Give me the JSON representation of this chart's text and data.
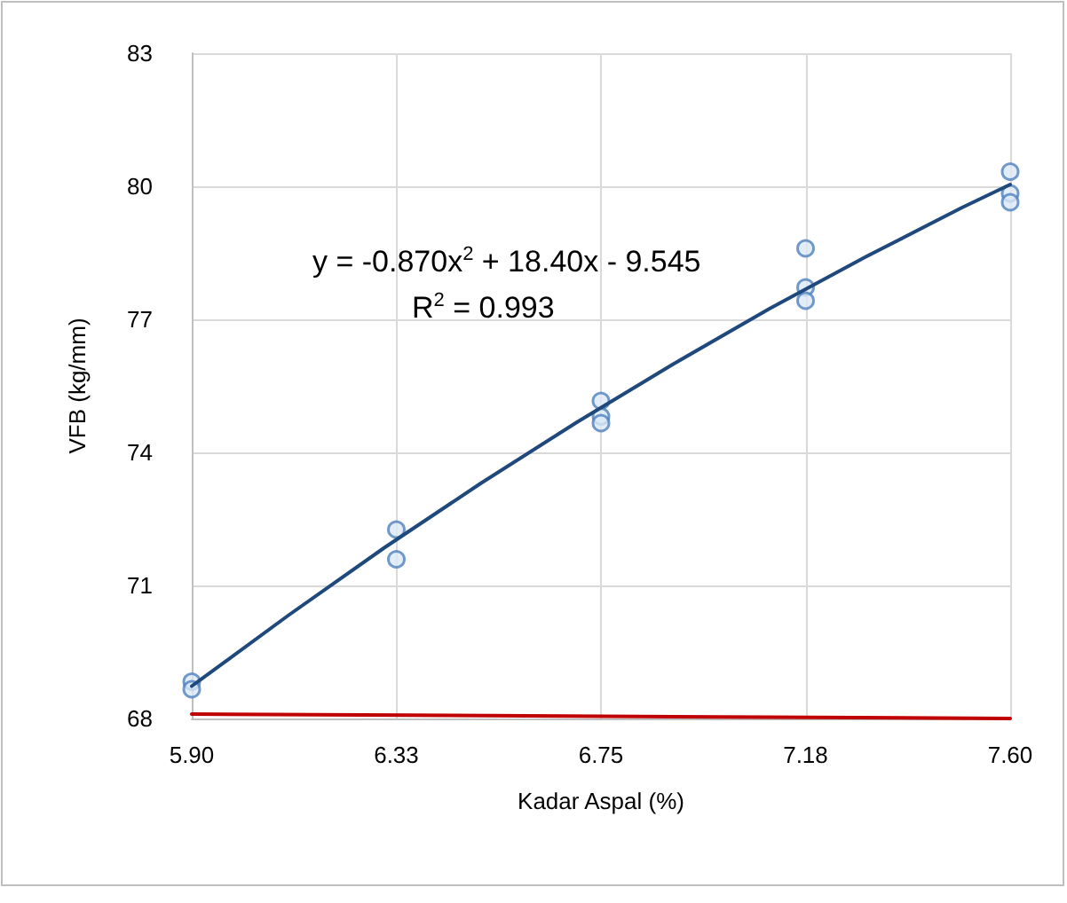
{
  "chart_data": {
    "type": "scatter",
    "xlabel": "Kadar Aspal (%)",
    "ylabel": "VFB (kg/mm)",
    "xlim": [
      5.9,
      7.6
    ],
    "xticks": [
      {
        "value": 5.9,
        "label": "5.90"
      },
      {
        "value": 6.325,
        "label": "6.33"
      },
      {
        "value": 6.75,
        "label": "6.75"
      },
      {
        "value": 7.175,
        "label": "7.18"
      },
      {
        "value": 7.6,
        "label": "7.60"
      }
    ],
    "ylim": [
      68,
      83
    ],
    "yticks": [
      68,
      71,
      74,
      77,
      80,
      83
    ],
    "grid": true,
    "marker": "circle",
    "annotations": [
      "y = -0.870x$^{2}$ + 18.40x - 9.545",
      "R$^{2}$ = 0.993"
    ],
    "series": [
      {
        "color": "#4f81bd",
        "x": [
          5.9,
          5.9,
          6.325,
          6.325,
          6.75,
          6.75,
          6.75,
          7.175,
          7.175,
          7.175,
          7.6,
          7.6,
          7.6
        ],
        "values": [
          68.83,
          68.66,
          72.26,
          71.59,
          75.16,
          74.81,
          74.66,
          78.6,
          77.72,
          77.42,
          80.33,
          79.84,
          79.64
        ]
      },
      {
        "type": "line",
        "color": "#1f497d",
        "marker": "none",
        "x": [
          5.9,
          6.1,
          6.3,
          6.5,
          6.7,
          6.9,
          7.1,
          7.3,
          7.5,
          7.6
        ],
        "values": [
          68.73,
          70.32,
          71.85,
          73.3,
          74.68,
          75.99,
          77.24,
          78.41,
          79.52,
          80.04
        ]
      },
      {
        "type": "line",
        "color": "#c00000",
        "marker": "none",
        "x": [
          5.9,
          7.6
        ],
        "values": [
          68.1,
          68.0
        ]
      }
    ]
  }
}
